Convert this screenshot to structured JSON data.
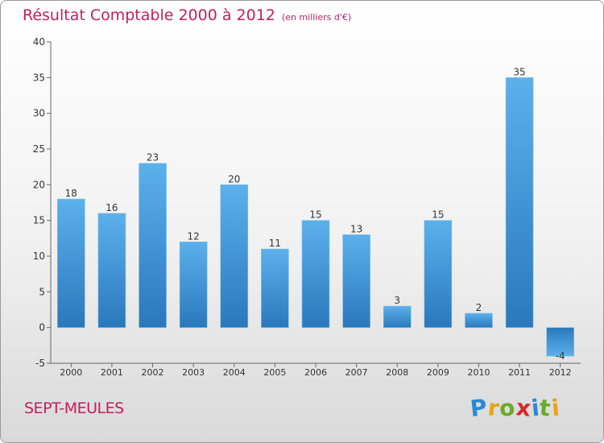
{
  "title": "Résultat Comptable 2000 à 2012",
  "subtitle": "(en milliers d'€)",
  "place": "SEPT-MEULES",
  "logo": {
    "letters": [
      "P",
      "r",
      "o",
      "x",
      "i",
      "t",
      "i"
    ],
    "colors": [
      "#2a8ad4",
      "#e8a21c",
      "#6aaa2a",
      "#d62a2a",
      "#2a8ad4",
      "#6aaa2a",
      "#e8a21c"
    ]
  },
  "chart_data": {
    "type": "bar",
    "categories": [
      "2000",
      "2001",
      "2002",
      "2003",
      "2004",
      "2005",
      "2006",
      "2007",
      "2008",
      "2009",
      "2010",
      "2011",
      "2012"
    ],
    "values": [
      18,
      16,
      23,
      12,
      20,
      11,
      15,
      13,
      3,
      15,
      2,
      35,
      -4
    ],
    "data_labels": [
      "18",
      "16",
      "23",
      "12",
      "20",
      "11",
      "15",
      "13",
      "3",
      "15",
      "2",
      "35",
      "-4"
    ],
    "ylim": [
      -5,
      40
    ],
    "yticks": [
      -5,
      0,
      5,
      10,
      15,
      20,
      25,
      30,
      35,
      40
    ],
    "grid": false,
    "bar_color": "#3a92d6"
  }
}
